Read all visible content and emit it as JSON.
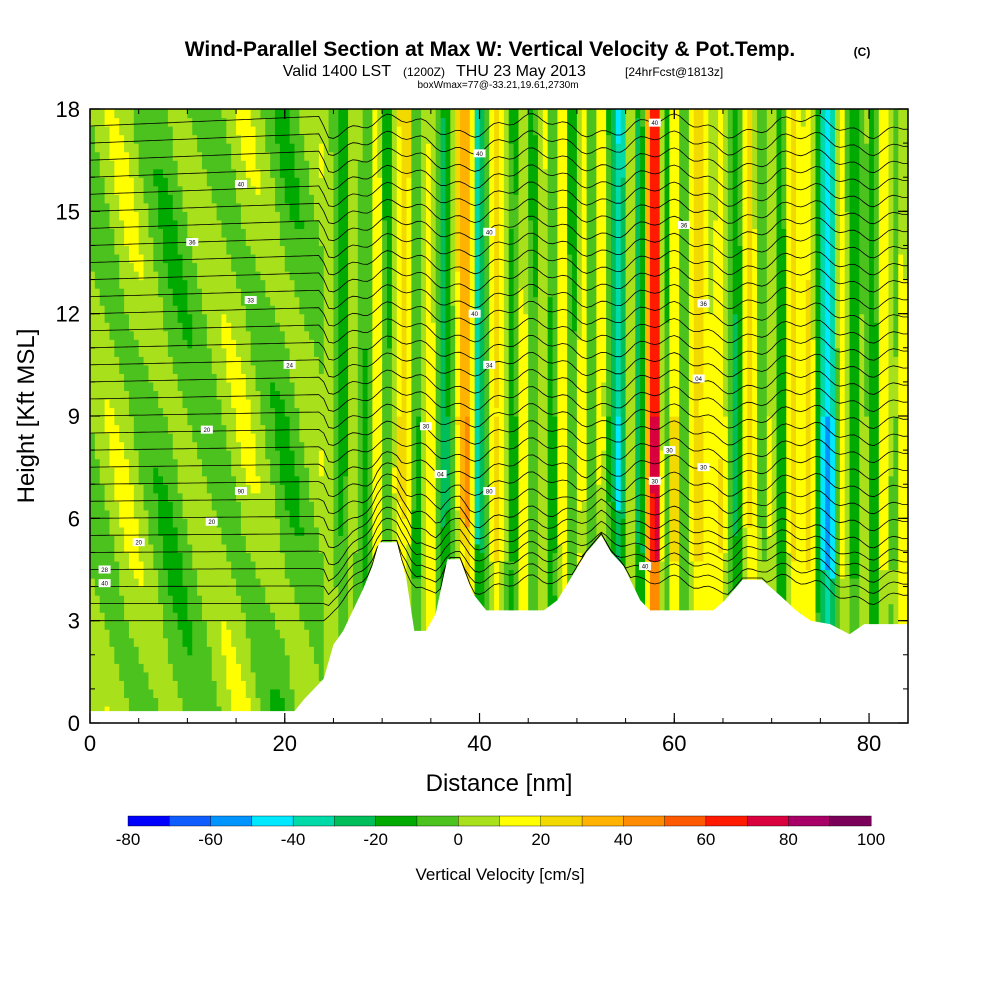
{
  "header": {
    "title": "Wind-Parallel Section at Max W: Vertical Velocity & Pot.Temp.",
    "copyright": "(C)",
    "valid_prefix": "Valid 1400 LST",
    "valid_utc": "(1200Z)",
    "valid_date": "THU 23 May 2013",
    "forecast": "[24hrFcst@1813z]",
    "boxmax": "boxWmax=77@-33.21,19.61,2730m"
  },
  "chart_data": {
    "type": "heatmap",
    "xlabel": "Distance [nm]",
    "ylabel": "Height [Kft MSL]",
    "xlim": [
      0,
      84
    ],
    "ylim": [
      0,
      18
    ],
    "x_ticks": [
      "0",
      "20",
      "40",
      "60",
      "80"
    ],
    "y_ticks": [
      "0",
      "3",
      "6",
      "9",
      "12",
      "15",
      "18"
    ],
    "colorbar": {
      "label": "Vertical Velocity [cm/s]",
      "range": [
        -80,
        100
      ],
      "step": 10,
      "tick_labels": [
        "-80",
        "-60",
        "-40",
        "-20",
        "0",
        "20",
        "40",
        "60",
        "80",
        "100"
      ],
      "colors": [
        "#0000ff",
        "#0f5cff",
        "#0094ff",
        "#00e8ff",
        "#00d9a8",
        "#00bf5a",
        "#00aa00",
        "#4cc21e",
        "#a8e01c",
        "#ffff00",
        "#f2d900",
        "#ffb300",
        "#ff8c00",
        "#ff5a00",
        "#ff1a00",
        "#d9003e",
        "#a80066",
        "#7a0059"
      ]
    },
    "terrain_kft": [
      [
        0,
        0.35
      ],
      [
        21,
        0.35
      ],
      [
        22,
        0.7
      ],
      [
        24,
        1.3
      ],
      [
        25,
        2.3
      ],
      [
        26,
        2.7
      ],
      [
        27,
        3.3
      ],
      [
        28,
        3.9
      ],
      [
        29,
        4.6
      ],
      [
        29.7,
        5.3
      ],
      [
        31.5,
        5.3
      ],
      [
        32.5,
        4.2
      ],
      [
        33.3,
        2.7
      ],
      [
        34.5,
        2.7
      ],
      [
        35.5,
        3.2
      ],
      [
        36.7,
        4.8
      ],
      [
        38,
        4.8
      ],
      [
        39.3,
        3.8
      ],
      [
        40.7,
        3.3
      ],
      [
        42,
        3.3
      ],
      [
        44.5,
        3.3
      ],
      [
        46.6,
        3.3
      ],
      [
        48,
        3.6
      ],
      [
        49.5,
        4.3
      ],
      [
        51,
        5.0
      ],
      [
        52.5,
        5.5
      ],
      [
        53.5,
        5.0
      ],
      [
        54.8,
        4.6
      ],
      [
        56.5,
        3.6
      ],
      [
        57.5,
        3.3
      ],
      [
        62,
        3.3
      ],
      [
        64,
        3.3
      ],
      [
        65.2,
        3.6
      ],
      [
        67,
        4.2
      ],
      [
        69,
        4.2
      ],
      [
        71,
        3.7
      ],
      [
        72.5,
        3.3
      ],
      [
        74,
        3.0
      ],
      [
        76,
        2.9
      ],
      [
        78,
        2.6
      ],
      [
        79.5,
        2.9
      ],
      [
        84,
        2.9
      ]
    ],
    "w_columns_cm_s": [
      [
        0,
        0
      ],
      [
        4,
        10
      ],
      [
        8,
        -10
      ],
      [
        12,
        0
      ],
      [
        16,
        10
      ],
      [
        20,
        -10
      ],
      [
        24,
        5
      ],
      [
        26,
        -15
      ],
      [
        27,
        15
      ],
      [
        28.5,
        -20
      ],
      [
        29.5,
        20
      ],
      [
        30.5,
        -20
      ],
      [
        31.5,
        25
      ],
      [
        32.5,
        35
      ],
      [
        33.5,
        -25
      ],
      [
        35,
        20
      ],
      [
        36.5,
        -25
      ],
      [
        38,
        30
      ],
      [
        39,
        40
      ],
      [
        39.8,
        -45
      ],
      [
        40.5,
        -15
      ],
      [
        41.5,
        35
      ],
      [
        42.5,
        15
      ],
      [
        43.5,
        -30
      ],
      [
        44.5,
        20
      ],
      [
        45.5,
        -15
      ],
      [
        46.5,
        25
      ],
      [
        47.5,
        -25
      ],
      [
        48.5,
        20
      ],
      [
        49.5,
        -25
      ],
      [
        50.5,
        30
      ],
      [
        51.5,
        -10
      ],
      [
        52.5,
        20
      ],
      [
        53.5,
        -30
      ],
      [
        54.5,
        -50
      ],
      [
        55.5,
        30
      ],
      [
        56.5,
        -40
      ],
      [
        57.5,
        60
      ],
      [
        58.2,
        80
      ],
      [
        59,
        -30
      ],
      [
        60,
        40
      ],
      [
        61,
        -15
      ],
      [
        62,
        30
      ],
      [
        63.5,
        5
      ],
      [
        65,
        25
      ],
      [
        66.5,
        -30
      ],
      [
        67.5,
        30
      ],
      [
        69,
        -15
      ],
      [
        70,
        25
      ],
      [
        71,
        -25
      ],
      [
        72,
        25
      ],
      [
        73,
        5
      ],
      [
        74,
        30
      ],
      [
        75,
        -30
      ],
      [
        76,
        -60
      ],
      [
        77,
        15
      ],
      [
        78.5,
        -25
      ],
      [
        79.5,
        15
      ],
      [
        80.5,
        -20
      ],
      [
        81.5,
        25
      ],
      [
        82.5,
        -15
      ],
      [
        83.5,
        20
      ],
      [
        84,
        10
      ]
    ],
    "isentrope_labels": [
      {
        "x": 15.5,
        "y": 15.8,
        "text": "40"
      },
      {
        "x": 10.5,
        "y": 14.1,
        "text": "36"
      },
      {
        "x": 16.5,
        "y": 12.4,
        "text": "33"
      },
      {
        "x": 20.5,
        "y": 10.5,
        "text": "24"
      },
      {
        "x": 12,
        "y": 8.6,
        "text": "20"
      },
      {
        "x": 15.5,
        "y": 6.8,
        "text": "90"
      },
      {
        "x": 12.5,
        "y": 5.9,
        "text": "20"
      },
      {
        "x": 5,
        "y": 5.3,
        "text": "20"
      },
      {
        "x": 1.5,
        "y": 4.5,
        "text": "28"
      },
      {
        "x": 1.5,
        "y": 4.1,
        "text": "40"
      },
      {
        "x": 40,
        "y": 16.7,
        "text": "40"
      },
      {
        "x": 41,
        "y": 14.4,
        "text": "40"
      },
      {
        "x": 39.5,
        "y": 12.0,
        "text": "40"
      },
      {
        "x": 41,
        "y": 10.5,
        "text": "34"
      },
      {
        "x": 34.5,
        "y": 8.7,
        "text": "30"
      },
      {
        "x": 36,
        "y": 7.3,
        "text": "04"
      },
      {
        "x": 41,
        "y": 6.8,
        "text": "80"
      },
      {
        "x": 58,
        "y": 17.6,
        "text": "40"
      },
      {
        "x": 61,
        "y": 14.6,
        "text": "36"
      },
      {
        "x": 63,
        "y": 12.3,
        "text": "36"
      },
      {
        "x": 62.5,
        "y": 10.1,
        "text": "04"
      },
      {
        "x": 59.5,
        "y": 8.0,
        "text": "30"
      },
      {
        "x": 63,
        "y": 7.5,
        "text": "30"
      },
      {
        "x": 58,
        "y": 7.1,
        "text": "30"
      },
      {
        "x": 57,
        "y": 4.6,
        "text": "40"
      }
    ]
  }
}
